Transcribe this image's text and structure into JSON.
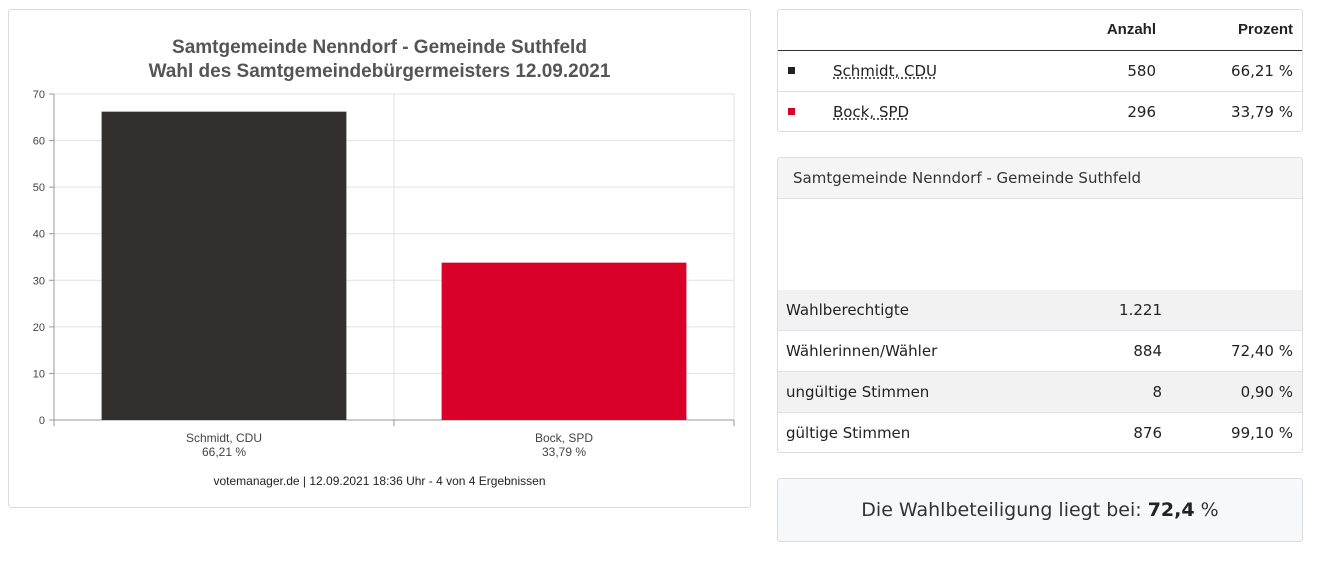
{
  "chart_data": {
    "type": "bar",
    "title": "Samtgemeinde Nenndorf - Gemeinde Suthfeld",
    "subtitle": "Wahl des Samtgemeindebürgermeisters 12.09.2021",
    "categories": [
      "Schmidt, CDU",
      "Bock, SPD"
    ],
    "category_sublabels": [
      "66,21 %",
      "33,79 %"
    ],
    "values": [
      66.21,
      33.79
    ],
    "colors": [
      "#32302e",
      "#d9002a"
    ],
    "ylim": [
      0,
      70
    ],
    "yticks": [
      "0",
      "10",
      "20",
      "30",
      "40",
      "50",
      "60",
      "70"
    ],
    "grid": true,
    "footer": "votemanager.de | 12.09.2021 18:36 Uhr - 4 von 4 Ergebnissen"
  },
  "results": {
    "header": {
      "count_label": "Anzahl",
      "percent_label": "Prozent"
    },
    "rows": [
      {
        "name": "Schmidt, CDU",
        "count": "580",
        "percent": "66,21 %",
        "color": "#222222"
      },
      {
        "name": "Bock, SPD",
        "count": "296",
        "percent": "33,79 %",
        "color": "#d9002a"
      }
    ]
  },
  "stats": {
    "title": "Samtgemeinde Nenndorf - Gemeinde Suthfeld",
    "rows": [
      {
        "label": "Wahlberechtigte",
        "value": "1.221",
        "percent": ""
      },
      {
        "label": "Wählerinnen/Wähler",
        "value": "884",
        "percent": "72,40 %"
      },
      {
        "label": "ungültige Stimmen",
        "value": "8",
        "percent": "0,90 %"
      },
      {
        "label": "gültige Stimmen",
        "value": "876",
        "percent": "99,10 %"
      }
    ]
  },
  "turnout": {
    "prefix": "Die Wahlbeteiligung liegt bei:",
    "value": "72,4",
    "unit": "%"
  }
}
